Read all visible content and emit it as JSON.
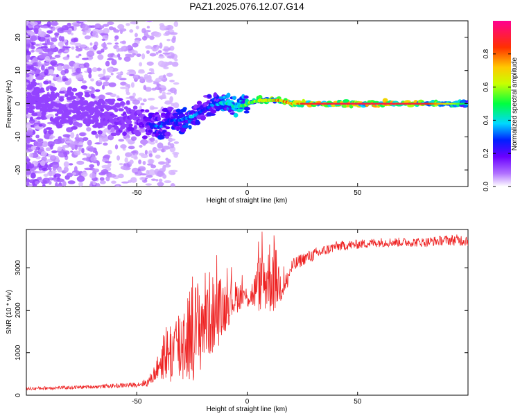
{
  "chart_data": [
    {
      "type": "heatmap",
      "title": "PAZ1.2025.076.12.07.G14",
      "xlabel": "Height of straight line (km)",
      "ylabel": "Frequency (Hz)",
      "xlim": [
        -100,
        100
      ],
      "ylim": [
        -25,
        25
      ],
      "xticks": [
        -50,
        0,
        50
      ],
      "yticks": [
        -20,
        -10,
        0,
        10,
        20
      ],
      "colorbar": {
        "label": "Normalized spectral amplitude",
        "range": [
          0,
          1
        ],
        "ticks": [
          0.0,
          0.2,
          0.4,
          0.6,
          0.8
        ],
        "colormap": [
          "#ffffff",
          "#8a00ff",
          "#0000ff",
          "#00e5ff",
          "#00ff00",
          "#ffff00",
          "#ff8000",
          "#ff0000",
          "#ff0080"
        ]
      },
      "ridge": {
        "x": [
          -100,
          -90,
          -80,
          -70,
          -60,
          -50,
          -45,
          -40,
          -35,
          -30,
          -25,
          -20,
          -15,
          -10,
          -5,
          0,
          5,
          10,
          15,
          20,
          30,
          40,
          60,
          80,
          100
        ],
        "frequency": [
          2,
          0,
          -1,
          -2,
          -4,
          -5,
          -6,
          -7,
          -5,
          -5,
          -4,
          -2,
          0,
          0,
          -1,
          0,
          1,
          1,
          1,
          0,
          0,
          0,
          0,
          0,
          0
        ],
        "amplitude": [
          0.1,
          0.12,
          0.15,
          0.15,
          0.17,
          0.2,
          0.25,
          0.35,
          0.3,
          0.35,
          0.4,
          0.3,
          0.35,
          0.45,
          0.5,
          0.6,
          0.65,
          0.72,
          0.8,
          0.85,
          0.9,
          0.92,
          0.92,
          0.9,
          0.45
        ]
      }
    },
    {
      "type": "line",
      "title": "",
      "xlabel": "Height of straight line (km)",
      "ylabel": "SNR (10 * v/v)",
      "xlim": [
        -100,
        100
      ],
      "ylim": [
        0,
        3900
      ],
      "xticks": [
        -50,
        0,
        50
      ],
      "yticks": [
        0,
        1000,
        2000,
        3000
      ],
      "series": [
        {
          "color": "#ee2222",
          "x": [
            -100,
            -90,
            -80,
            -70,
            -60,
            -50,
            -45,
            -42,
            -40,
            -38,
            -35,
            -32,
            -30,
            -28,
            -25,
            -22,
            -20,
            -17,
            -15,
            -12,
            -10,
            -8,
            -5,
            -3,
            0,
            3,
            5,
            8,
            10,
            12,
            15,
            18,
            20,
            25,
            30,
            35,
            40,
            50,
            60,
            70,
            80,
            90,
            100
          ],
          "y": [
            150,
            170,
            180,
            200,
            220,
            250,
            300,
            500,
            700,
            1000,
            1000,
            1100,
            1200,
            1400,
            1500,
            1600,
            1800,
            1900,
            1900,
            2000,
            2100,
            2200,
            2300,
            2350,
            2300,
            2400,
            2600,
            2700,
            2800,
            2800,
            2600,
            2700,
            3000,
            3200,
            3300,
            3400,
            3500,
            3550,
            3600,
            3600,
            3600,
            3650,
            3650
          ],
          "noise": [
            40,
            40,
            40,
            40,
            50,
            60,
            100,
            200,
            300,
            500,
            600,
            700,
            800,
            900,
            900,
            900,
            900,
            800,
            700,
            600,
            500,
            400,
            300,
            250,
            200,
            300,
            500,
            600,
            700,
            700,
            350,
            250,
            200,
            150,
            150,
            130,
            120,
            110,
            110,
            110,
            110,
            120,
            150
          ]
        }
      ]
    }
  ]
}
